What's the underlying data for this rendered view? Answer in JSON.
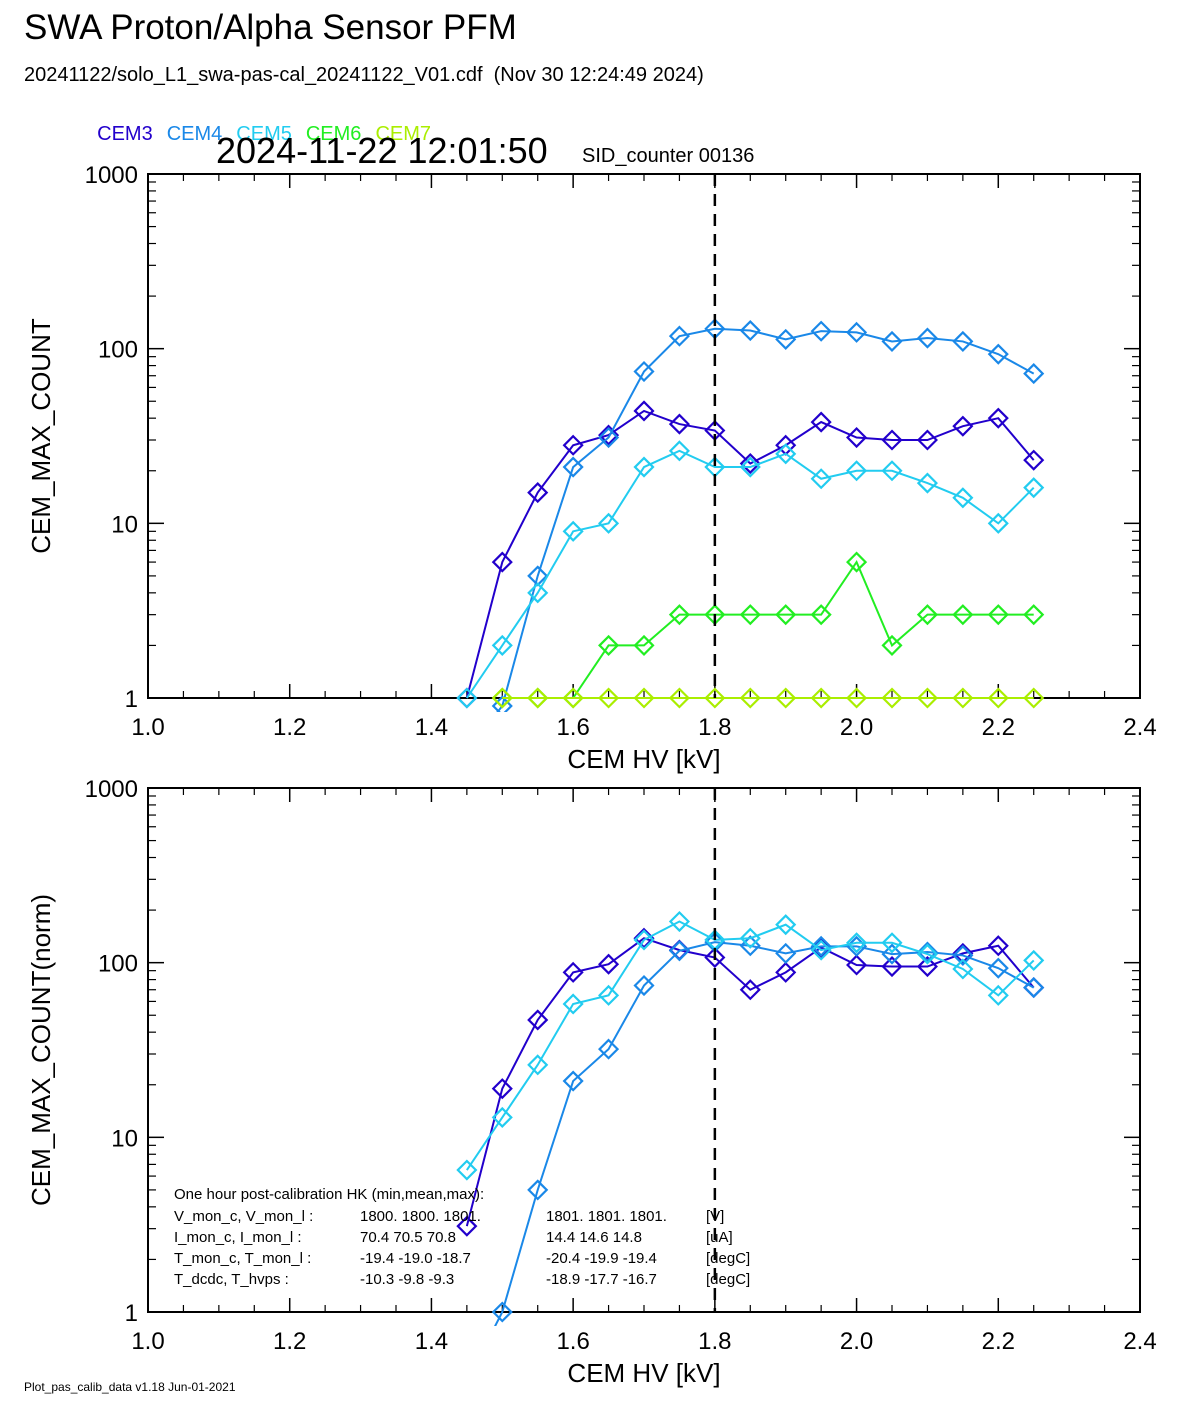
{
  "title": "SWA Proton/Alpha Sensor PFM",
  "subtitle": "20241122/solo_L1_swa-pas-cal_20241122_V01.cdf  (Nov 30 12:24:49 2024)",
  "legend": [
    {
      "name": "CEM3",
      "color": "#2200cc"
    },
    {
      "name": "CEM4",
      "color": "#1a88e8"
    },
    {
      "name": "CEM5",
      "color": "#22ccf0"
    },
    {
      "name": "CEM6",
      "color": "#22ee22"
    },
    {
      "name": "CEM7",
      "color": "#aaee00"
    }
  ],
  "datetime": "2024-11-22 12:01:50",
  "sid_label": "SID_counter 00136",
  "footer": "Plot_pas_calib_data v1.18 Jun-01-2021",
  "hk_text": {
    "title": "One hour post-calibration HK (min,mean,max):",
    "rows": [
      {
        "label": "V_mon_c, V_mon_l :",
        "a": "1800.  1800.  1801.",
        "b": "1801.  1801.  1801.",
        "unit": "[V]"
      },
      {
        "label": "I_mon_c,  I_mon_l :",
        "a": "70.4   70.5   70.8",
        "b": "14.4   14.6   14.8",
        "unit": "[uA]"
      },
      {
        "label": "T_mon_c, T_mon_l :",
        "a": "-19.4  -19.0  -18.7",
        "b": "-20.4  -19.9  -19.4",
        "unit": "[degC]"
      },
      {
        "label": "T_dcdc,    T_hvps :",
        "a": "-10.3   -9.8   -9.3",
        "b": "-18.9  -17.7  -16.7",
        "unit": "[degC]"
      }
    ]
  },
  "chart_data": [
    {
      "type": "line",
      "xlabel": "CEM HV [kV]",
      "ylabel": "CEM_MAX_COUNT",
      "xlim": [
        1.0,
        2.4
      ],
      "ylim": [
        1,
        1000
      ],
      "yscale": "log",
      "xticks": [
        "1.0",
        "1.2",
        "1.4",
        "1.6",
        "1.8",
        "2.0",
        "2.2",
        "2.4"
      ],
      "yticks": [
        "1",
        "10",
        "100",
        "1000"
      ],
      "vline": 1.8,
      "x": [
        1.45,
        1.5,
        1.55,
        1.6,
        1.65,
        1.7,
        1.75,
        1.8,
        1.85,
        1.9,
        1.95,
        2.0,
        2.05,
        2.1,
        2.15,
        2.2,
        2.25
      ],
      "series": [
        {
          "name": "CEM3",
          "color": "#2200cc",
          "values": [
            1,
            6,
            15,
            28,
            32,
            44,
            37,
            34,
            22,
            28,
            38,
            31,
            30,
            30,
            36,
            40,
            23
          ]
        },
        {
          "name": "CEM4",
          "color": "#1a88e8",
          "values": [
            0.5,
            0.9,
            5,
            21,
            31,
            74,
            118,
            130,
            127,
            113,
            126,
            124,
            110,
            115,
            110,
            93,
            72
          ]
        },
        {
          "name": "CEM5",
          "color": "#22ccf0",
          "values": [
            1,
            2,
            4,
            9,
            10,
            21,
            26,
            21,
            21,
            25,
            18,
            20,
            20,
            17,
            14,
            10,
            16
          ]
        },
        {
          "name": "CEM6",
          "color": "#22ee22",
          "values": [
            null,
            1,
            1,
            1,
            2,
            2,
            3,
            3,
            3,
            3,
            3,
            6,
            2,
            3,
            3,
            3,
            3
          ]
        },
        {
          "name": "CEM7",
          "color": "#aaee00",
          "values": [
            null,
            1,
            1,
            1,
            1,
            1,
            1,
            1,
            1,
            1,
            1,
            1,
            1,
            1,
            1,
            1,
            1
          ]
        }
      ]
    },
    {
      "type": "line",
      "xlabel": "CEM HV [kV]",
      "ylabel": "CEM_MAX_COUNT(norm)",
      "xlim": [
        1.0,
        2.4
      ],
      "ylim": [
        1,
        1000
      ],
      "yscale": "log",
      "xticks": [
        "1.0",
        "1.2",
        "1.4",
        "1.6",
        "1.8",
        "2.0",
        "2.2",
        "2.4"
      ],
      "yticks": [
        "1",
        "10",
        "100",
        "1000"
      ],
      "vline": 1.8,
      "x": [
        1.45,
        1.5,
        1.55,
        1.6,
        1.65,
        1.7,
        1.75,
        1.8,
        1.85,
        1.9,
        1.95,
        2.0,
        2.05,
        2.1,
        2.15,
        2.2,
        2.25
      ],
      "series": [
        {
          "name": "CEM3",
          "color": "#2200cc",
          "values": [
            3.1,
            19,
            47,
            88,
            98,
            138,
            118,
            107,
            70,
            88,
            122,
            97,
            95,
            95,
            113,
            125,
            72
          ]
        },
        {
          "name": "CEM4",
          "color": "#1a88e8",
          "values": [
            0.4,
            1,
            5,
            21,
            32,
            74,
            117,
            131,
            125,
            113,
            124,
            124,
            112,
            115,
            110,
            93,
            72
          ]
        },
        {
          "name": "CEM5",
          "color": "#22ccf0",
          "values": [
            6.5,
            13,
            26,
            58,
            65,
            135,
            172,
            135,
            138,
            165,
            118,
            130,
            130,
            112,
            92,
            65,
            103
          ]
        }
      ]
    }
  ]
}
